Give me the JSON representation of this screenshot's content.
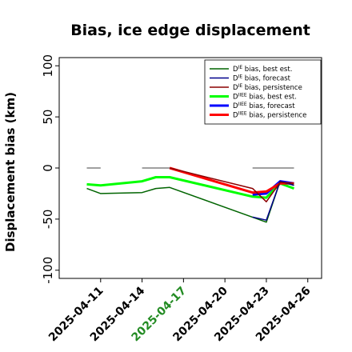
{
  "chart_data": {
    "type": "line",
    "title": "Bias, ice edge displacement",
    "ylabel": "Displacement bias (km)",
    "xlabel": "",
    "ylim": [
      -108,
      108
    ],
    "yticks": [
      100,
      50,
      0,
      -50,
      -100
    ],
    "xlim": [
      "2025-04-08",
      "2025-04-27"
    ],
    "xticks": [
      "2025-04-11",
      "2025-04-14",
      "2025-04-17",
      "2025-04-20",
      "2025-04-23",
      "2025-04-26"
    ],
    "xtick_colors": [
      "#000000",
      "#000000",
      "#228B22",
      "#000000",
      "#000000",
      "#000000"
    ],
    "legend_position": "top-right",
    "series": [
      {
        "name": "D$^{IE}$ bias, best est.",
        "legend_main": "D",
        "legend_sup": "IE",
        "legend_rest": " bias, best est.",
        "color": "#006400",
        "width": 1.5,
        "x": [
          "2025-04-10",
          "2025-04-11",
          "2025-04-14",
          "2025-04-15",
          "2025-04-16",
          "2025-04-23",
          "2025-04-24",
          "2025-04-25"
        ],
        "y": [
          -20,
          -25,
          -24,
          -20,
          -19,
          -53,
          -13,
          -17
        ]
      },
      {
        "name": "D$^{IE}$ bias, forecast",
        "legend_main": "D",
        "legend_sup": "IE",
        "legend_rest": " bias, forecast",
        "color": "#00008B",
        "width": 1.5,
        "x": [
          "2025-04-22",
          "2025-04-23",
          "2025-04-24",
          "2025-04-25"
        ],
        "y": [
          -48,
          -51,
          -13,
          -17
        ]
      },
      {
        "name": "D$^{IE}$ bias, persistence",
        "legend_main": "D",
        "legend_sup": "IE",
        "legend_rest": " bias, persistence",
        "color": "#8B0000",
        "width": 1.5,
        "x": [
          "2025-04-16",
          "2025-04-22",
          "2025-04-23",
          "2025-04-24",
          "2025-04-25"
        ],
        "y": [
          0,
          -20,
          -33,
          -14,
          -15
        ]
      },
      {
        "name": "D$^{IIEE}$ bias, best est.",
        "legend_main": "D",
        "legend_sup": "IIEE",
        "legend_rest": " bias, best est.",
        "color": "#00FF00",
        "width": 3,
        "x": [
          "2025-04-10",
          "2025-04-11",
          "2025-04-14",
          "2025-04-15",
          "2025-04-16",
          "2025-04-22",
          "2025-04-23",
          "2025-04-24",
          "2025-04-25"
        ],
        "y": [
          -16,
          -17,
          -13,
          -9,
          -9,
          -28,
          -29,
          -15,
          -20
        ]
      },
      {
        "name": "D$^{IIEE}$ bias, forecast",
        "legend_main": "D",
        "legend_sup": "IIEE",
        "legend_rest": " bias, forecast",
        "color": "#0000FF",
        "width": 3,
        "x": [
          "2025-04-22",
          "2025-04-23",
          "2025-04-24",
          "2025-04-25"
        ],
        "y": [
          -26,
          -25,
          -13,
          -15
        ]
      },
      {
        "name": "D$^{IIEE}$ bias, persistence",
        "legend_main": "D",
        "legend_sup": "IIEE",
        "legend_rest": " bias, persistence",
        "color": "#FF0000",
        "width": 3,
        "x": [
          "2025-04-16",
          "2025-04-22",
          "2025-04-23",
          "2025-04-24",
          "2025-04-25"
        ],
        "y": [
          0,
          -24,
          -23,
          -15,
          -15
        ]
      },
      {
        "name": "",
        "color": "#808080",
        "width": 1.5,
        "legend": false,
        "x": [
          "2025-04-10",
          "2025-04-11"
        ],
        "y": [
          0,
          0
        ]
      },
      {
        "name": "",
        "color": "#808080",
        "width": 1.5,
        "legend": false,
        "x": [
          "2025-04-14",
          "2025-04-16"
        ],
        "y": [
          0,
          0
        ]
      },
      {
        "name": "",
        "color": "#808080",
        "width": 1.5,
        "legend": false,
        "x": [
          "2025-04-22",
          "2025-04-25"
        ],
        "y": [
          0,
          0
        ]
      }
    ]
  }
}
